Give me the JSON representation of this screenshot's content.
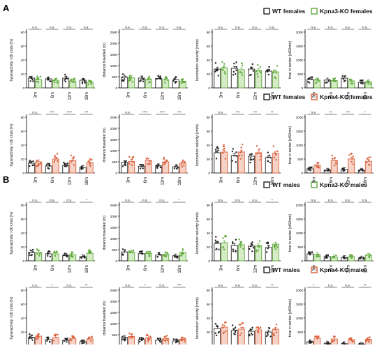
{
  "sections": [
    {
      "label": "A"
    },
    {
      "label": "B"
    }
  ],
  "legends": [
    {
      "items": [
        {
          "text": "WT females",
          "color": "#222222"
        },
        {
          "text": "Kpna3-KO females",
          "color": "#5fa83a"
        }
      ]
    },
    {
      "items": [
        {
          "text": "WT females",
          "color": "#222222"
        },
        {
          "text": "Kpna4-KO females",
          "color": "#d9603b"
        }
      ]
    },
    {
      "items": [
        {
          "text": "WT males",
          "color": "#222222"
        },
        {
          "text": "Kpna3-KO males",
          "color": "#5fa83a"
        }
      ]
    },
    {
      "items": [
        {
          "text": "WT males",
          "color": "#222222"
        },
        {
          "text": "Kpna4-KO males",
          "color": "#d9603b"
        }
      ]
    }
  ],
  "colors": {
    "wt": "#222222",
    "kpna3": "#5fa83a",
    "kpna4": "#d9603b",
    "kpna4_fill": "#f6d2c6",
    "kpna3_fill": "#d5ecc6"
  },
  "chart_data": [
    {
      "type": "bar",
      "panel": "A-1-1",
      "ylabel": "hyperactivity >20 cm/s (%)",
      "categories": [
        "3m",
        "6m",
        "12m",
        "18m"
      ],
      "yticks": [
        "0",
        "20",
        "40",
        "60",
        "80"
      ],
      "ylim": [
        0,
        80
      ],
      "series": [
        {
          "name": "WT females",
          "values": [
            14,
            13,
            14,
            11
          ]
        },
        {
          "name": "Kpna3-KO females",
          "values": [
            12,
            11,
            10,
            8
          ]
        }
      ],
      "significance": [
        "n.s.",
        "n.s.",
        "n.s.",
        "n.s."
      ]
    },
    {
      "type": "bar",
      "panel": "A-1-2",
      "ylabel": "distance travelled (m)",
      "categories": [
        "3m",
        "6m",
        "12m",
        "18m"
      ],
      "yticks": [
        "0",
        "500",
        "1000",
        "1500",
        "2000",
        "2500"
      ],
      "ylim": [
        0,
        2500
      ],
      "series": [
        {
          "name": "WT females",
          "values": [
            480,
            440,
            420,
            360
          ]
        },
        {
          "name": "Kpna3-KO females",
          "values": [
            450,
            380,
            360,
            300
          ]
        }
      ],
      "significance": [
        "n.s.",
        "n.s.",
        "n.s.",
        "n.s."
      ]
    },
    {
      "type": "bar",
      "panel": "A-1-3",
      "ylabel": "locomotion velocity (cm/s)",
      "categories": [
        "3m",
        "6m",
        "12m",
        "18m"
      ],
      "yticks": [
        "0",
        "20",
        "40",
        "60",
        "80"
      ],
      "ylim": [
        0,
        80
      ],
      "series": [
        {
          "name": "WT females",
          "values": [
            27,
            28,
            27,
            24
          ]
        },
        {
          "name": "Kpna3-KO females",
          "values": [
            29,
            26,
            25,
            23
          ]
        }
      ],
      "significance": [
        "n.s.",
        "n.s.",
        "n.s.",
        "n.s."
      ]
    },
    {
      "type": "bar",
      "panel": "A-1-4",
      "ylabel": "time in center (s/60min)",
      "categories": [
        "3m",
        "6m",
        "12m",
        "18m"
      ],
      "yticks": [
        "0",
        "500",
        "1000",
        "1500",
        "2000"
      ],
      "ylim": [
        0,
        2000
      ],
      "series": [
        {
          "name": "WT females",
          "values": [
            300,
            280,
            350,
            200
          ]
        },
        {
          "name": "Kpna3-KO females",
          "values": [
            280,
            260,
            250,
            220
          ]
        }
      ],
      "significance": [
        "n.s.",
        "n.s.",
        "n.s.",
        "n.s."
      ]
    },
    {
      "type": "bar",
      "panel": "A-2-1",
      "ylabel": "hyperactivity >20 cm/s (%)",
      "categories": [
        "3m",
        "6m",
        "12m",
        "18m"
      ],
      "yticks": [
        "0",
        "20",
        "40",
        "60",
        "80"
      ],
      "ylim": [
        0,
        80
      ],
      "series": [
        {
          "name": "WT females",
          "values": [
            14,
            10,
            11,
            8
          ]
        },
        {
          "name": "Kpna4-KO females",
          "values": [
            16,
            20,
            18,
            15
          ]
        }
      ],
      "significance": [
        "n.s.",
        "****",
        "****",
        "***"
      ]
    },
    {
      "type": "bar",
      "panel": "A-2-2",
      "ylabel": "distance travelled (m)",
      "categories": [
        "3m",
        "6m",
        "12m",
        "18m"
      ],
      "yticks": [
        "0",
        "500",
        "1000",
        "1500",
        "2000",
        "2500"
      ],
      "ylim": [
        0,
        2500
      ],
      "series": [
        {
          "name": "WT females",
          "values": [
            460,
            300,
            320,
            280
          ]
        },
        {
          "name": "Kpna4-KO females",
          "values": [
            520,
            560,
            500,
            440
          ]
        }
      ],
      "significance": [
        "n.s.",
        "****",
        "****",
        "***"
      ]
    },
    {
      "type": "bar",
      "panel": "A-2-3",
      "ylabel": "locomotion velocity (cm/s)",
      "categories": [
        "3m",
        "6m",
        "12m",
        "18m"
      ],
      "yticks": [
        "0",
        "20",
        "40",
        "60",
        "80"
      ],
      "ylim": [
        0,
        80
      ],
      "series": [
        {
          "name": "WT females",
          "values": [
            29,
            25,
            24,
            22
          ]
        },
        {
          "name": "Kpna4-KO females",
          "values": [
            30,
            30,
            29,
            28
          ]
        }
      ],
      "significance": [
        "n.s.",
        "***",
        "***",
        "**"
      ]
    },
    {
      "type": "bar",
      "panel": "A-2-4",
      "ylabel": "time in center (s/60min)",
      "categories": [
        "3m",
        "6m",
        "12m",
        "18m"
      ],
      "yticks": [
        "0",
        "500",
        "1000",
        "1500",
        "2000"
      ],
      "ylim": [
        0,
        2000
      ],
      "series": [
        {
          "name": "WT females",
          "values": [
            150,
            100,
            120,
            100
          ]
        },
        {
          "name": "Kpna4-KO females",
          "values": [
            280,
            450,
            500,
            420
          ]
        }
      ],
      "significance": [
        "n.s.",
        "**",
        "***",
        "*"
      ]
    },
    {
      "type": "bar",
      "panel": "B-1-1",
      "ylabel": "hyperactivity >20 cm/s (%)",
      "categories": [
        "3m",
        "6m",
        "12m",
        "18m"
      ],
      "yticks": [
        "0",
        "20",
        "40",
        "60",
        "80"
      ],
      "ylim": [
        0,
        80
      ],
      "series": [
        {
          "name": "WT males",
          "values": [
            12,
            10,
            8,
            6
          ]
        },
        {
          "name": "Kpna3-KO males",
          "values": [
            12,
            10,
            9,
            11
          ]
        }
      ],
      "significance": [
        "n.s.",
        "n.s.",
        "n.s.",
        "*"
      ]
    },
    {
      "type": "bar",
      "panel": "B-1-2",
      "ylabel": "distance travelled (m)",
      "categories": [
        "3m",
        "6m",
        "12m",
        "18m"
      ],
      "yticks": [
        "0",
        "500",
        "1000",
        "1500",
        "2000",
        "2500"
      ],
      "ylim": [
        0,
        2500
      ],
      "series": [
        {
          "name": "WT males",
          "values": [
            400,
            320,
            260,
            220
          ]
        },
        {
          "name": "Kpna3-KO males",
          "values": [
            380,
            330,
            300,
            380
          ]
        }
      ],
      "significance": [
        "n.s.",
        "n.s.",
        "n.s.",
        "*"
      ]
    },
    {
      "type": "bar",
      "panel": "B-1-3",
      "ylabel": "locomotion velocity (cm/s)",
      "categories": [
        "3m",
        "6m",
        "12m",
        "18m"
      ],
      "yticks": [
        "0",
        "20",
        "40",
        "60",
        "80"
      ],
      "ylim": [
        0,
        80
      ],
      "series": [
        {
          "name": "WT males",
          "values": [
            25,
            22,
            21,
            19
          ]
        },
        {
          "name": "Kpna3-KO males",
          "values": [
            26,
            23,
            22,
            24
          ]
        }
      ],
      "significance": [
        "n.s.",
        "n.s.",
        "n.s.",
        "*"
      ]
    },
    {
      "type": "bar",
      "panel": "B-1-4",
      "ylabel": "time in center (s/60min)",
      "categories": [
        "3m",
        "6m",
        "12m",
        "18m"
      ],
      "yticks": [
        "0",
        "500",
        "1000",
        "1500",
        "2000"
      ],
      "ylim": [
        0,
        2000
      ],
      "series": [
        {
          "name": "WT males",
          "values": [
            250,
            150,
            120,
            100
          ]
        },
        {
          "name": "Kpna3-KO males",
          "values": [
            220,
            140,
            150,
            200
          ]
        }
      ],
      "significance": [
        "n.s.",
        "n.s.",
        "n.s.",
        "n.s."
      ]
    },
    {
      "type": "bar",
      "panel": "B-2-1",
      "ylabel": "hyperactivity >20 cm/s (%)",
      "categories": [
        "3m",
        "6m",
        "12m",
        "18m"
      ],
      "yticks": [
        "0",
        "20",
        "40",
        "60",
        "80"
      ],
      "ylim": [
        0,
        80
      ],
      "series": [
        {
          "name": "WT males",
          "values": [
            12,
            9,
            8,
            6
          ]
        },
        {
          "name": "Kpna4-KO males",
          "values": [
            14,
            12,
            11,
            10
          ]
        }
      ],
      "significance": [
        "n.s.",
        "*",
        "n.s.",
        "**"
      ]
    },
    {
      "type": "bar",
      "panel": "B-2-2",
      "ylabel": "distance travelled (m)",
      "categories": [
        "3m",
        "6m",
        "12m",
        "18m"
      ],
      "yticks": [
        "0",
        "500",
        "1000",
        "1500",
        "2000",
        "2500"
      ],
      "ylim": [
        0,
        2500
      ],
      "series": [
        {
          "name": "WT males",
          "values": [
            380,
            280,
            260,
            220
          ]
        },
        {
          "name": "Kpna4-KO males",
          "values": [
            420,
            360,
            340,
            300
          ]
        }
      ],
      "significance": [
        "n.s.",
        "*",
        "n.s.",
        "***"
      ]
    },
    {
      "type": "bar",
      "panel": "B-2-3",
      "ylabel": "locomotion velocity (cm/s)",
      "categories": [
        "3m",
        "6m",
        "12m",
        "18m"
      ],
      "yticks": [
        "0",
        "20",
        "40",
        "60",
        "80"
      ],
      "ylim": [
        0,
        80
      ],
      "series": [
        {
          "name": "WT males",
          "values": [
            25,
            22,
            21,
            20
          ]
        },
        {
          "name": "Kpna4-KO males",
          "values": [
            27,
            24,
            23,
            24
          ]
        }
      ],
      "significance": [
        "n.s.",
        "n.s.",
        "n.s.",
        "**"
      ]
    },
    {
      "type": "bar",
      "panel": "B-2-4",
      "ylabel": "time in center (s/60min)",
      "categories": [
        "3m",
        "6m",
        "12m",
        "18m"
      ],
      "yticks": [
        "0",
        "500",
        "1000",
        "1500",
        "2000"
      ],
      "ylim": [
        0,
        2000
      ],
      "series": [
        {
          "name": "WT males",
          "values": [
            150,
            100,
            80,
            60
          ]
        },
        {
          "name": "Kpna4-KO males",
          "values": [
            280,
            250,
            230,
            240
          ]
        }
      ],
      "significance": [
        "*",
        "n.s.",
        "n.s.",
        "**"
      ]
    }
  ]
}
